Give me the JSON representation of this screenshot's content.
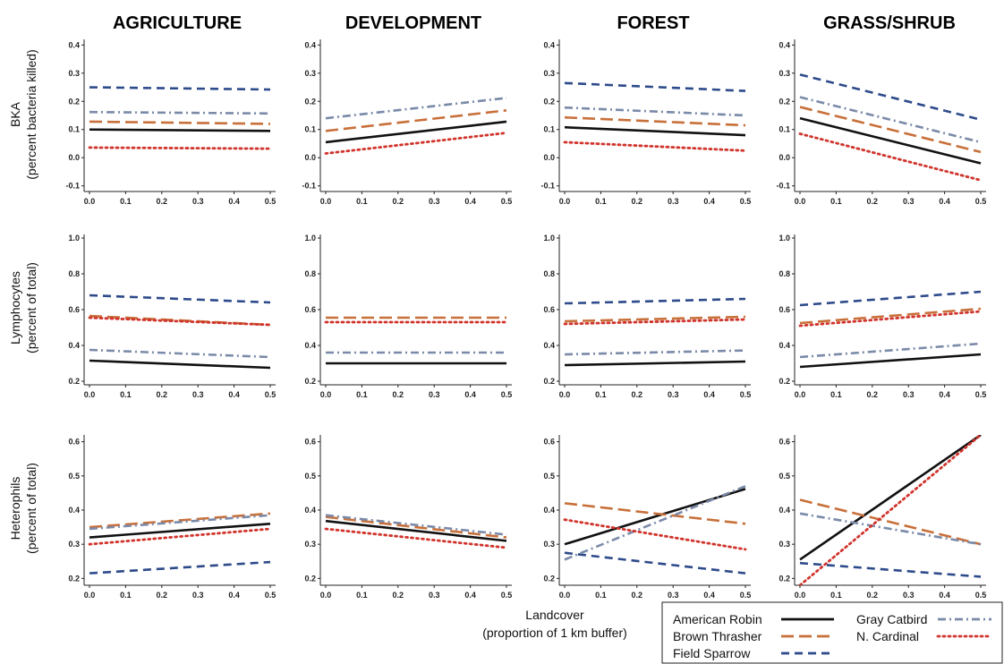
{
  "figure": {
    "columns": [
      "AGRICULTURE",
      "DEVELOPMENT",
      "FOREST",
      "GRASS/SHRUB"
    ],
    "row_labels": [
      [
        "BKA",
        "(percent bacteria killed)"
      ],
      [
        "Lymphocytes",
        "(percent of total)"
      ],
      [
        "Heterophils",
        "(percent of total)"
      ]
    ],
    "xlabel_lines": [
      "Landcover",
      "(proportion of 1 km buffer)"
    ]
  },
  "legend": [
    {
      "name": "American Robin",
      "color": "#111111",
      "dash": "solid"
    },
    {
      "name": "Brown Thrasher",
      "color": "#c8703a",
      "dash": "longdash"
    },
    {
      "name": "Field Sparrow",
      "color": "#2d4a8a",
      "dash": "dash"
    },
    {
      "name": "Gray Catbird",
      "color": "#7a8aa8",
      "dash": "dashdot"
    },
    {
      "name": "N. Cardinal",
      "color": "#d0342c",
      "dash": "dot"
    }
  ],
  "chart_data": {
    "type": "line",
    "x_range": [
      0.0,
      0.5
    ],
    "x_ticks": [
      "0.0",
      "0.1",
      "0.2",
      "0.3",
      "0.4",
      "0.5"
    ],
    "rows": [
      {
        "ylim": [
          -0.12,
          0.42
        ],
        "y_ticks": [
          "0.4",
          "0.3",
          "0.2",
          "0.1",
          "0.0",
          "-0.1"
        ],
        "y_tick_values": [
          0.4,
          0.3,
          0.2,
          0.1,
          0.0,
          -0.1
        ],
        "panels": [
          {
            "column": "AGRICULTURE",
            "series": [
              {
                "name": "American Robin",
                "start": 0.1,
                "end": 0.095
              },
              {
                "name": "Brown Thrasher",
                "start": 0.128,
                "end": 0.12
              },
              {
                "name": "Field Sparrow",
                "start": 0.25,
                "end": 0.242
              },
              {
                "name": "Gray Catbird",
                "start": 0.162,
                "end": 0.157
              },
              {
                "name": "N. Cardinal",
                "start": 0.036,
                "end": 0.032
              }
            ]
          },
          {
            "column": "DEVELOPMENT",
            "series": [
              {
                "name": "American Robin",
                "start": 0.055,
                "end": 0.128
              },
              {
                "name": "Brown Thrasher",
                "start": 0.095,
                "end": 0.168
              },
              {
                "name": "Gray Catbird",
                "start": 0.14,
                "end": 0.212
              },
              {
                "name": "N. Cardinal",
                "start": 0.015,
                "end": 0.088
              }
            ]
          },
          {
            "column": "FOREST",
            "series": [
              {
                "name": "American Robin",
                "start": 0.108,
                "end": 0.08
              },
              {
                "name": "Brown Thrasher",
                "start": 0.143,
                "end": 0.115
              },
              {
                "name": "Field Sparrow",
                "start": 0.265,
                "end": 0.237
              },
              {
                "name": "Gray Catbird",
                "start": 0.178,
                "end": 0.15
              },
              {
                "name": "N. Cardinal",
                "start": 0.055,
                "end": 0.025
              }
            ]
          },
          {
            "column": "GRASS/SHRUB",
            "series": [
              {
                "name": "American Robin",
                "start": 0.14,
                "end": -0.02
              },
              {
                "name": "Brown Thrasher",
                "start": 0.18,
                "end": 0.02
              },
              {
                "name": "Field Sparrow",
                "start": 0.295,
                "end": 0.135
              },
              {
                "name": "Gray Catbird",
                "start": 0.215,
                "end": 0.055
              },
              {
                "name": "N. Cardinal",
                "start": 0.085,
                "end": -0.08
              }
            ]
          }
        ]
      },
      {
        "ylim": [
          0.18,
          1.02
        ],
        "y_ticks": [
          "1.0",
          "0.8",
          "0.6",
          "0.4",
          "0.2"
        ],
        "y_tick_values": [
          1.0,
          0.8,
          0.6,
          0.4,
          0.2
        ],
        "panels": [
          {
            "column": "AGRICULTURE",
            "series": [
              {
                "name": "American Robin",
                "start": 0.315,
                "end": 0.275
              },
              {
                "name": "Brown Thrasher",
                "start": 0.565,
                "end": 0.515
              },
              {
                "name": "Field Sparrow",
                "start": 0.68,
                "end": 0.64
              },
              {
                "name": "Gray Catbird",
                "start": 0.375,
                "end": 0.335
              },
              {
                "name": "N. Cardinal",
                "start": 0.555,
                "end": 0.515
              }
            ]
          },
          {
            "column": "DEVELOPMENT",
            "series": [
              {
                "name": "American Robin",
                "start": 0.3,
                "end": 0.3
              },
              {
                "name": "Brown Thrasher",
                "start": 0.555,
                "end": 0.555
              },
              {
                "name": "Gray Catbird",
                "start": 0.36,
                "end": 0.36
              },
              {
                "name": "N. Cardinal",
                "start": 0.53,
                "end": 0.53
              }
            ]
          },
          {
            "column": "FOREST",
            "series": [
              {
                "name": "American Robin",
                "start": 0.29,
                "end": 0.31
              },
              {
                "name": "Brown Thrasher",
                "start": 0.535,
                "end": 0.56
              },
              {
                "name": "Field Sparrow",
                "start": 0.635,
                "end": 0.66
              },
              {
                "name": "Gray Catbird",
                "start": 0.35,
                "end": 0.372
              },
              {
                "name": "N. Cardinal",
                "start": 0.52,
                "end": 0.545
              }
            ]
          },
          {
            "column": "GRASS/SHRUB",
            "series": [
              {
                "name": "American Robin",
                "start": 0.28,
                "end": 0.35
              },
              {
                "name": "Brown Thrasher",
                "start": 0.525,
                "end": 0.605
              },
              {
                "name": "Field Sparrow",
                "start": 0.625,
                "end": 0.7
              },
              {
                "name": "Gray Catbird",
                "start": 0.335,
                "end": 0.41
              },
              {
                "name": "N. Cardinal",
                "start": 0.51,
                "end": 0.59
              }
            ]
          }
        ]
      },
      {
        "ylim": [
          0.18,
          0.62
        ],
        "y_ticks": [
          "0.6",
          "0.5",
          "0.4",
          "0.3",
          "0.2"
        ],
        "y_tick_values": [
          0.6,
          0.5,
          0.4,
          0.3,
          0.2
        ],
        "panels": [
          {
            "column": "AGRICULTURE",
            "series": [
              {
                "name": "American Robin",
                "start": 0.32,
                "end": 0.36
              },
              {
                "name": "Brown Thrasher",
                "start": 0.35,
                "end": 0.39
              },
              {
                "name": "Field Sparrow",
                "start": 0.215,
                "end": 0.248
              },
              {
                "name": "Gray Catbird",
                "start": 0.345,
                "end": 0.385
              },
              {
                "name": "N. Cardinal",
                "start": 0.3,
                "end": 0.345
              }
            ]
          },
          {
            "column": "DEVELOPMENT",
            "series": [
              {
                "name": "American Robin",
                "start": 0.368,
                "end": 0.31
              },
              {
                "name": "Brown Thrasher",
                "start": 0.38,
                "end": 0.32
              },
              {
                "name": "Gray Catbird",
                "start": 0.385,
                "end": 0.328
              },
              {
                "name": "N. Cardinal",
                "start": 0.345,
                "end": 0.29
              }
            ]
          },
          {
            "column": "FOREST",
            "series": [
              {
                "name": "American Robin",
                "start": 0.3,
                "end": 0.462
              },
              {
                "name": "Brown Thrasher",
                "start": 0.42,
                "end": 0.36
              },
              {
                "name": "Field Sparrow",
                "start": 0.275,
                "end": 0.215
              },
              {
                "name": "Gray Catbird",
                "start": 0.255,
                "end": 0.47
              },
              {
                "name": "N. Cardinal",
                "start": 0.372,
                "end": 0.285
              }
            ]
          },
          {
            "column": "GRASS/SHRUB",
            "series": [
              {
                "name": "American Robin",
                "start": 0.255,
                "end": 0.62
              },
              {
                "name": "Brown Thrasher",
                "start": 0.43,
                "end": 0.3
              },
              {
                "name": "Field Sparrow",
                "start": 0.245,
                "end": 0.205
              },
              {
                "name": "Gray Catbird",
                "start": 0.39,
                "end": 0.3
              },
              {
                "name": "N. Cardinal",
                "start": 0.18,
                "end": 0.62
              }
            ]
          }
        ]
      }
    ]
  }
}
